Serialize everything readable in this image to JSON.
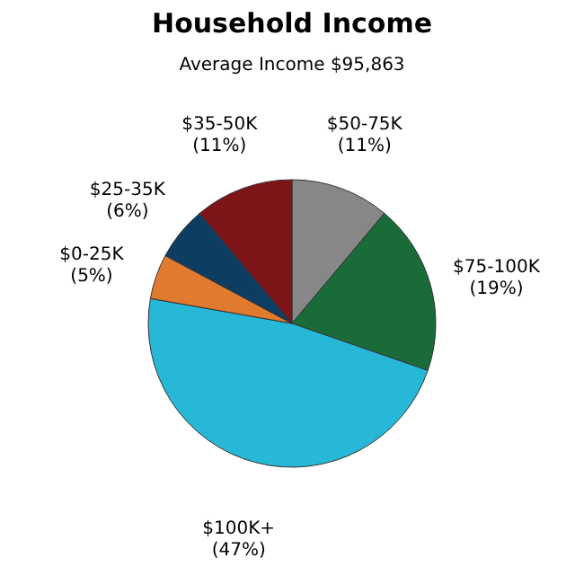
{
  "chart_data": {
    "type": "pie",
    "title": "Household Income",
    "subtitle": "Average Income  $95,863",
    "categories": [
      "$50-75K",
      "$75-100K",
      "$100K+",
      "$0-25K",
      "$25-35K",
      "$35-50K"
    ],
    "values": [
      11,
      19,
      47,
      5,
      6,
      11
    ],
    "value_labels": [
      "(11%)",
      "(19%)",
      "(47%)",
      "(5%)",
      "(6%)",
      "(11%)"
    ],
    "colors": [
      "#878787",
      "#1a6b3a",
      "#26b8d6",
      "#e07a2e",
      "#0e3d62",
      "#7d1418"
    ],
    "legend": false
  }
}
